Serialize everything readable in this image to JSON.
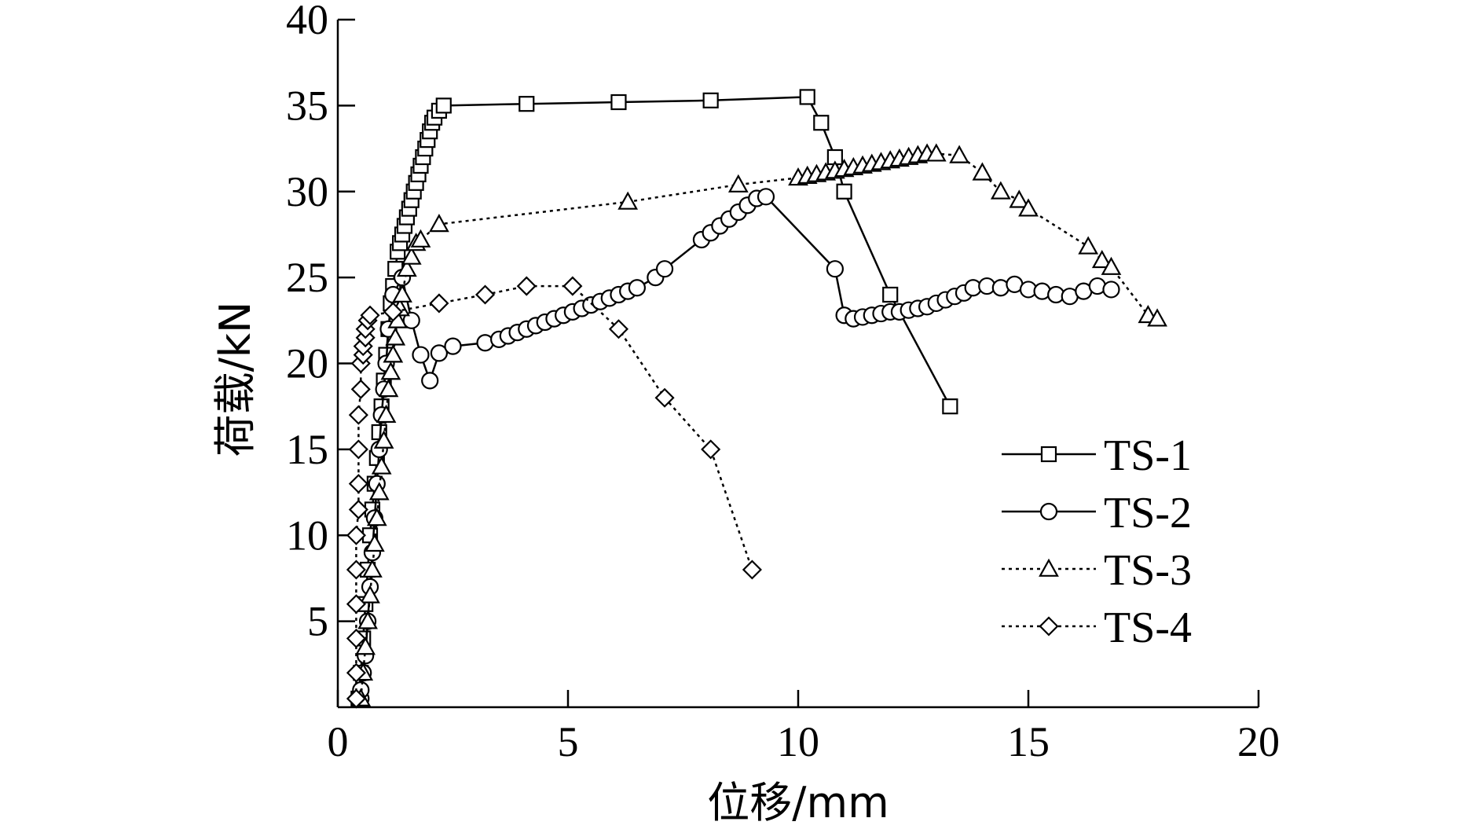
{
  "chart_data": {
    "type": "line",
    "title": "",
    "xlabel": "位移/mm",
    "ylabel": "荷载/kN",
    "xlim": [
      0,
      20
    ],
    "ylim": [
      0,
      40
    ],
    "xticks": [
      0,
      5,
      10,
      15,
      20
    ],
    "yticks": [
      5,
      10,
      15,
      20,
      25,
      30,
      35,
      40
    ],
    "grid": false,
    "legend_position": "lower-right",
    "series": [
      {
        "name": "TS-1",
        "marker": "square",
        "line_style": "solid",
        "x": [
          0.45,
          0.5,
          0.55,
          0.6,
          0.65,
          0.7,
          0.75,
          0.8,
          0.85,
          0.9,
          0.95,
          1.0,
          1.05,
          1.1,
          1.15,
          1.2,
          1.25,
          1.3,
          1.35,
          1.4,
          1.45,
          1.5,
          1.55,
          1.6,
          1.65,
          1.7,
          1.75,
          1.8,
          1.85,
          1.9,
          1.95,
          2.0,
          2.05,
          2.1,
          2.2,
          2.3,
          4.1,
          6.1,
          8.1,
          10.2,
          10.5,
          10.8,
          11.0,
          12.0,
          13.3
        ],
        "y": [
          0.5,
          2.0,
          4.0,
          6.0,
          8.0,
          10.0,
          11.5,
          13.0,
          14.5,
          16.0,
          17.5,
          19.0,
          20.5,
          22.0,
          23.5,
          24.5,
          25.5,
          26.5,
          27.0,
          27.5,
          28.0,
          28.5,
          29.0,
          29.5,
          30.0,
          30.5,
          31.0,
          31.5,
          32.0,
          32.5,
          33.0,
          33.5,
          34.0,
          34.3,
          34.7,
          35.0,
          35.1,
          35.2,
          35.3,
          35.5,
          34.0,
          32.0,
          30.0,
          24.0,
          17.5
        ]
      },
      {
        "name": "TS-2",
        "marker": "circle",
        "line_style": "solid",
        "x": [
          0.5,
          0.5,
          0.55,
          0.6,
          0.65,
          0.7,
          0.75,
          0.8,
          0.85,
          0.9,
          0.95,
          1.0,
          1.05,
          1.1,
          1.2,
          1.4,
          1.6,
          1.8,
          2.0,
          2.2,
          2.5,
          3.2,
          3.5,
          3.7,
          3.9,
          4.1,
          4.3,
          4.5,
          4.7,
          4.9,
          5.1,
          5.3,
          5.5,
          5.7,
          5.9,
          6.1,
          6.3,
          6.5,
          6.9,
          7.1,
          7.9,
          8.1,
          8.3,
          8.5,
          8.7,
          8.9,
          9.1,
          9.3,
          10.8,
          11.0,
          11.2,
          11.4,
          11.6,
          11.8,
          12.0,
          12.2,
          12.4,
          12.6,
          12.8,
          13.0,
          13.2,
          13.4,
          13.6,
          13.8,
          14.1,
          14.4,
          14.7,
          15.0,
          15.3,
          15.6,
          15.9,
          16.2,
          16.5,
          16.8
        ],
        "y": [
          0.5,
          1.0,
          2.0,
          3.0,
          5.0,
          7.0,
          9.0,
          11.0,
          13.0,
          15.0,
          17.0,
          18.5,
          20.0,
          22.0,
          24.0,
          25.0,
          22.5,
          20.5,
          19.0,
          20.6,
          21.0,
          21.2,
          21.4,
          21.6,
          21.8,
          22.0,
          22.2,
          22.4,
          22.6,
          22.8,
          23.0,
          23.2,
          23.4,
          23.6,
          23.8,
          24.0,
          24.2,
          24.4,
          25.0,
          25.5,
          27.2,
          27.6,
          28.0,
          28.4,
          28.8,
          29.2,
          29.6,
          29.7,
          25.5,
          22.8,
          22.6,
          22.7,
          22.8,
          22.9,
          23.0,
          23.0,
          23.1,
          23.2,
          23.3,
          23.5,
          23.7,
          23.9,
          24.1,
          24.4,
          24.5,
          24.4,
          24.6,
          24.3,
          24.2,
          24.0,
          23.9,
          24.2,
          24.5,
          24.3
        ]
      },
      {
        "name": "TS-3",
        "marker": "triangle",
        "line_style": "dotted",
        "x": [
          0.5,
          0.55,
          0.6,
          0.65,
          0.7,
          0.75,
          0.8,
          0.85,
          0.9,
          0.95,
          1.0,
          1.05,
          1.1,
          1.15,
          1.2,
          1.25,
          1.3,
          1.35,
          1.4,
          1.5,
          1.6,
          1.7,
          1.8,
          2.2,
          6.3,
          8.7,
          10.0,
          10.2,
          10.4,
          10.6,
          10.8,
          11.0,
          11.2,
          11.4,
          11.6,
          11.8,
          12.0,
          12.2,
          12.4,
          12.6,
          12.8,
          13.0,
          13.5,
          14.0,
          14.4,
          14.8,
          15.0,
          16.3,
          16.6,
          16.8,
          17.6,
          17.8
        ],
        "y": [
          0.5,
          2.0,
          3.5,
          5.0,
          6.5,
          8.0,
          9.5,
          11.0,
          12.5,
          14.0,
          15.5,
          17.0,
          18.5,
          19.5,
          20.5,
          21.5,
          22.5,
          23.2,
          24.0,
          25.5,
          26.2,
          27.0,
          27.2,
          28.1,
          29.4,
          30.4,
          30.8,
          30.9,
          31.0,
          31.1,
          31.2,
          31.3,
          31.4,
          31.5,
          31.6,
          31.7,
          31.8,
          31.9,
          32.0,
          32.1,
          32.2,
          32.2,
          32.1,
          31.1,
          30.0,
          29.5,
          29.0,
          26.8,
          26.0,
          25.6,
          22.8,
          22.6
        ]
      },
      {
        "name": "TS-4",
        "marker": "diamond",
        "line_style": "dotted",
        "x": [
          0.4,
          0.4,
          0.4,
          0.4,
          0.4,
          0.4,
          0.45,
          0.45,
          0.45,
          0.45,
          0.5,
          0.5,
          0.55,
          0.55,
          0.6,
          0.6,
          0.65,
          0.7,
          1.2,
          2.2,
          3.2,
          4.1,
          5.1,
          6.1,
          7.1,
          8.1,
          9.0
        ],
        "y": [
          0.5,
          2.0,
          4.0,
          6.0,
          8.0,
          10.0,
          11.5,
          13.0,
          15.0,
          17.0,
          18.5,
          20.0,
          20.5,
          21.0,
          21.5,
          22.0,
          22.5,
          22.8,
          23.0,
          23.5,
          24.0,
          24.5,
          24.5,
          22.0,
          18.0,
          15.0,
          8.0
        ]
      }
    ]
  }
}
